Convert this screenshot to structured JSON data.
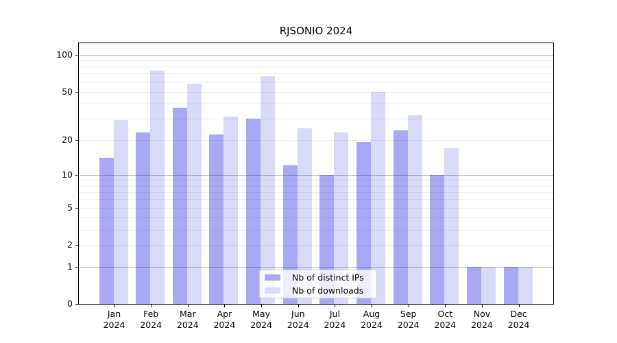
{
  "title": "RJSONIO 2024",
  "chart_data": {
    "type": "bar",
    "title": "RJSONIO 2024",
    "year": "2024",
    "categories": [
      "Jan",
      "Feb",
      "Mar",
      "Apr",
      "May",
      "Jun",
      "Jul",
      "Aug",
      "Sep",
      "Oct",
      "Nov",
      "Dec"
    ],
    "series": [
      {
        "name": "Nb of distinct IPs",
        "color": "#a8a8f5",
        "values": [
          14,
          23,
          37,
          22,
          30,
          12,
          10,
          19,
          24,
          10,
          1,
          1
        ]
      },
      {
        "name": "Nb of downloads",
        "color": "#d9d9f8",
        "values": [
          29,
          74,
          58,
          31,
          67,
          25,
          23,
          50,
          32,
          17,
          1,
          1
        ]
      }
    ],
    "yscale": "log10(1+x)",
    "ylim": [
      0,
      125
    ],
    "yticks": [
      0,
      1,
      2,
      5,
      10,
      20,
      50,
      100
    ],
    "major_gridlines": [
      1,
      10,
      100
    ],
    "minor_gridlines": [
      2,
      3,
      4,
      5,
      6,
      7,
      8,
      9,
      20,
      30,
      40,
      50,
      60,
      70,
      80,
      90
    ],
    "grid": true,
    "legend_position": "bottom-center"
  }
}
